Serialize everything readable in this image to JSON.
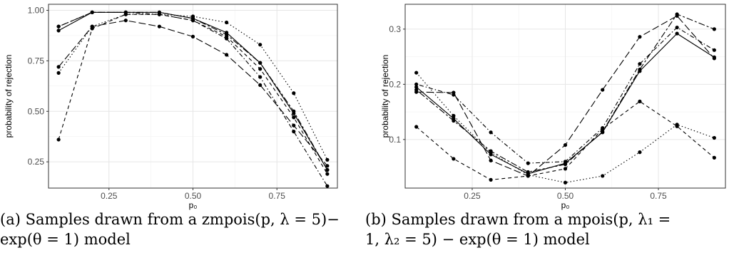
{
  "captions": [
    {
      "line1": "(a) Samples drawn from a zmpois(p, λ = 5)−",
      "line2": "exp(θ = 1) model"
    },
    {
      "line1": "(b) Samples drawn from a mpois(p, λ₁ =",
      "line2": "1, λ₂ = 5) − exp(θ = 1) model"
    }
  ],
  "chart_data": [
    {
      "type": "line",
      "xlabel": "p₀",
      "ylabel": "probability of rejection",
      "xlim": [
        0.07,
        0.93
      ],
      "ylim": [
        0.12,
        1.03
      ],
      "xticks": [
        0.25,
        0.5,
        0.75
      ],
      "xtick_labels": [
        "0.25",
        "0.50",
        "0.75"
      ],
      "yticks": [
        0.25,
        0.5,
        0.75,
        1.0
      ],
      "ytick_labels": [
        "0.25",
        "0.50",
        "0.75",
        "1.00"
      ],
      "grid": true,
      "x": [
        0.1,
        0.2,
        0.3,
        0.4,
        0.5,
        0.6,
        0.7,
        0.8,
        0.9
      ],
      "series": [
        {
          "style": "solid",
          "values": [
            0.9,
            0.99,
            0.99,
            0.99,
            0.96,
            0.89,
            0.74,
            0.49,
            0.21
          ]
        },
        {
          "style": "dashed",
          "values": [
            0.36,
            0.91,
            0.98,
            0.98,
            0.95,
            0.87,
            0.71,
            0.47,
            0.19
          ]
        },
        {
          "style": "dotted",
          "values": [
            0.69,
            0.92,
            0.98,
            0.98,
            0.97,
            0.94,
            0.83,
            0.59,
            0.26
          ]
        },
        {
          "style": "dotdash",
          "values": [
            0.92,
            0.99,
            0.99,
            0.98,
            0.95,
            0.86,
            0.67,
            0.4,
            0.13
          ]
        },
        {
          "style": "longdash",
          "values": [
            0.72,
            0.92,
            0.95,
            0.92,
            0.87,
            0.78,
            0.63,
            0.43,
            0.23
          ]
        },
        {
          "style": "twodash",
          "values": [
            0.92,
            0.99,
            0.99,
            0.99,
            0.96,
            0.88,
            0.74,
            0.5,
            0.21
          ]
        }
      ]
    },
    {
      "type": "line",
      "xlabel": "p₀",
      "ylabel": "probability of rejection",
      "xlim": [
        0.07,
        0.93
      ],
      "ylim": [
        0.012,
        0.345
      ],
      "xticks": [
        0.25,
        0.5,
        0.75
      ],
      "xtick_labels": [
        "0.25",
        "0.50",
        "0.75"
      ],
      "yticks": [
        0.1,
        0.2,
        0.3
      ],
      "ytick_labels": [
        "0.1",
        "0.2",
        "0.3"
      ],
      "grid": true,
      "x": [
        0.1,
        0.2,
        0.3,
        0.4,
        0.5,
        0.6,
        0.7,
        0.8,
        0.9
      ],
      "series": [
        {
          "style": "solid",
          "values": [
            0.195,
            0.138,
            0.073,
            0.038,
            0.057,
            0.113,
            0.224,
            0.292,
            0.249
          ]
        },
        {
          "style": "dashed",
          "values": [
            0.123,
            0.065,
            0.027,
            0.034,
            0.047,
            0.119,
            0.169,
            0.124,
            0.067
          ]
        },
        {
          "style": "dotted",
          "values": [
            0.221,
            0.143,
            0.076,
            0.036,
            0.022,
            0.034,
            0.077,
            0.127,
            0.103
          ]
        },
        {
          "style": "dotdash",
          "values": [
            0.2,
            0.181,
            0.113,
            0.057,
            0.06,
            0.121,
            0.237,
            0.303,
            0.262
          ]
        },
        {
          "style": "longdash",
          "values": [
            0.186,
            0.185,
            0.062,
            0.034,
            0.09,
            0.19,
            0.286,
            0.324,
            0.247
          ]
        },
        {
          "style": "twodash",
          "values": [
            0.19,
            0.134,
            0.079,
            0.041,
            0.055,
            0.114,
            0.227,
            0.327,
            0.3
          ]
        }
      ]
    }
  ]
}
